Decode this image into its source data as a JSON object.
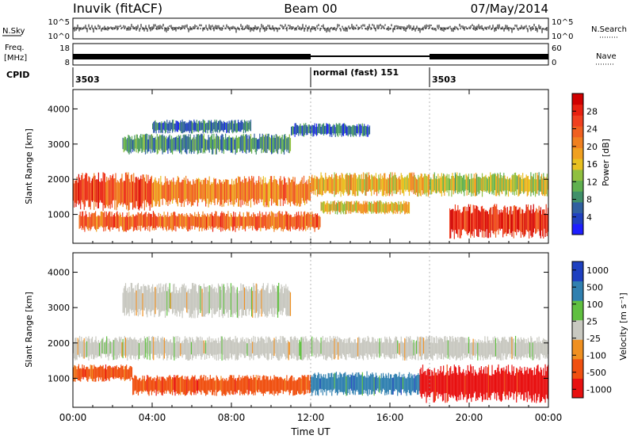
{
  "header": {
    "station": "Inuvik (fitACF)",
    "beam": "Beam 00",
    "date": "07/May/2014"
  },
  "strip_panels": {
    "noise": {
      "left_label": "N.Sky",
      "right_label": "N.Search",
      "left_ticks": [
        "10^5",
        "10^0"
      ],
      "right_ticks": [
        "10^5",
        "10^0"
      ]
    },
    "freq": {
      "left_label_line1": "Freq.",
      "left_label_line2": "[MHz]",
      "right_label": "Nave",
      "left_ticks": [
        "18",
        "8"
      ],
      "right_ticks": [
        "60",
        "0"
      ]
    },
    "cpid": {
      "label": "CPID",
      "segments": [
        {
          "start_hour": 0,
          "end_hour": 12,
          "text": "3503"
        },
        {
          "start_hour": 12,
          "end_hour": 18,
          "text": "normal (fast) 151"
        },
        {
          "start_hour": 18,
          "end_hour": 24,
          "text": "3503"
        }
      ]
    }
  },
  "chart_data": [
    {
      "type": "heatmap",
      "quantity": "power",
      "ylabel": "Slant Range [km]",
      "ylim": [
        180,
        4550
      ],
      "yticks": [
        1000,
        2000,
        3000,
        4000
      ],
      "colorbar_label": "Power [dB]",
      "colorbar_ticks": [
        "4",
        "8",
        "12",
        "16",
        "20",
        "24",
        "28"
      ],
      "colorbar_range": [
        0,
        32
      ],
      "colors": [
        "#1e1eff",
        "#2040c0",
        "#3060a0",
        "#40906a",
        "#60b050",
        "#90c040",
        "#e8c020",
        "#f0a020",
        "#f08020",
        "#f06020",
        "#f04020",
        "#e82010",
        "#d00000"
      ],
      "echo_bands": [
        {
          "start_hour": 0.0,
          "end_hour": 4.0,
          "range_min_km": 1100,
          "range_max_km": 2200,
          "power_db": 26
        },
        {
          "start_hour": 4.0,
          "end_hour": 12.0,
          "range_min_km": 1200,
          "range_max_km": 2100,
          "power_db": 22
        },
        {
          "start_hour": 12.0,
          "end_hour": 18.0,
          "range_min_km": 1500,
          "range_max_km": 2200,
          "power_db": 18
        },
        {
          "start_hour": 18.0,
          "end_hour": 24.0,
          "range_min_km": 1500,
          "range_max_km": 2200,
          "power_db": 14
        },
        {
          "start_hour": 0.3,
          "end_hour": 12.5,
          "range_min_km": 500,
          "range_max_km": 1100,
          "power_db": 24
        },
        {
          "start_hour": 12.5,
          "end_hour": 17.0,
          "range_min_km": 1000,
          "range_max_km": 1400,
          "power_db": 17
        },
        {
          "start_hour": 19.0,
          "end_hour": 24.0,
          "range_min_km": 300,
          "range_max_km": 1300,
          "power_db": 28
        },
        {
          "start_hour": 2.5,
          "end_hour": 11.0,
          "range_min_km": 2700,
          "range_max_km": 3300,
          "power_db": 8
        },
        {
          "start_hour": 4.0,
          "end_hour": 9.0,
          "range_min_km": 3300,
          "range_max_km": 3700,
          "power_db": 6
        },
        {
          "start_hour": 11.0,
          "end_hour": 15.0,
          "range_min_km": 3200,
          "range_max_km": 3600,
          "power_db": 5
        }
      ]
    },
    {
      "type": "heatmap",
      "quantity": "velocity",
      "xlabel": "Time UT",
      "ylabel": "Slant Range [km]",
      "ylim": [
        180,
        4550
      ],
      "yticks": [
        1000,
        2000,
        3000,
        4000
      ],
      "xlim": [
        0,
        24
      ],
      "xtick_labels": [
        "00:00",
        "04:00",
        "08:00",
        "12:00",
        "16:00",
        "20:00",
        "00:00"
      ],
      "colorbar_label": "Velocity [m s⁻¹]",
      "colorbar_ticks": [
        "1000",
        "500",
        "100",
        "25",
        "-25",
        "-100",
        "-500",
        "-1000"
      ],
      "colors": [
        "#e81010",
        "#f05010",
        "#f09020",
        "#c8c8c0",
        "#60c040",
        "#3080b0",
        "#1e40c0"
      ],
      "echo_bands": [
        {
          "start_hour": 0.0,
          "end_hour": 24.0,
          "range_min_km": 1500,
          "range_max_km": 2200,
          "velocity_mps": 0
        },
        {
          "start_hour": 3.0,
          "end_hour": 12.0,
          "range_min_km": 500,
          "range_max_km": 1100,
          "velocity_mps": -300
        },
        {
          "start_hour": 12.0,
          "end_hour": 17.5,
          "range_min_km": 500,
          "range_max_km": 1200,
          "velocity_mps": 150
        },
        {
          "start_hour": 17.5,
          "end_hour": 24.0,
          "range_min_km": 300,
          "range_max_km": 1400,
          "velocity_mps": -700
        },
        {
          "start_hour": 0.0,
          "end_hour": 3.0,
          "range_min_km": 900,
          "range_max_km": 1400,
          "velocity_mps": -200
        },
        {
          "start_hour": 2.5,
          "end_hour": 11.0,
          "range_min_km": 2700,
          "range_max_km": 3700,
          "velocity_mps": 0
        }
      ]
    }
  ]
}
